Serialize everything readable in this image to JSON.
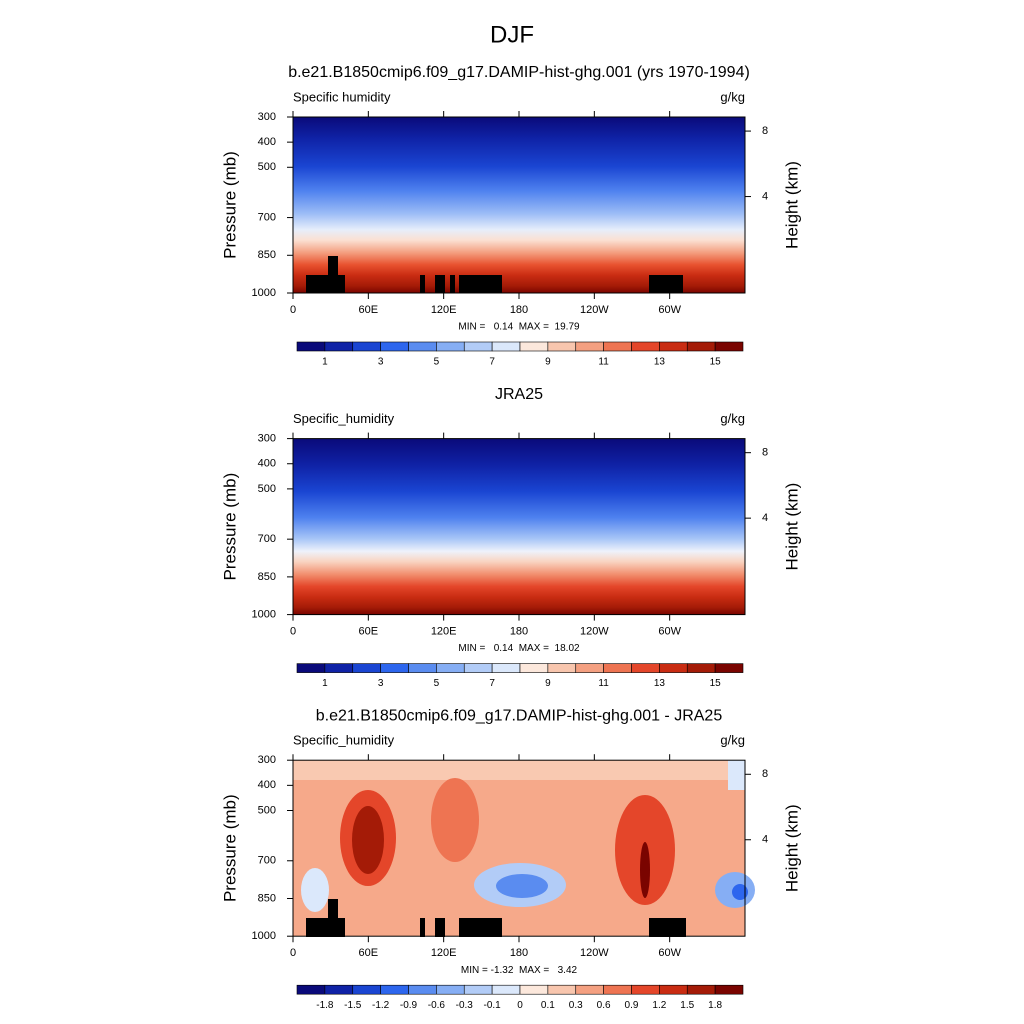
{
  "title": "DJF",
  "chart_data": [
    {
      "type": "contour",
      "title": "b.e21.B1850cmip6.f09_g17.DAMIP-hist-ghg.001 (yrs 1970-1994)",
      "left_label": "Specific humidity",
      "right_label": "g/kg",
      "ylabel": "Pressure (mb)",
      "y2label": "Height (km)",
      "xlim": [
        0,
        360
      ],
      "xticks": [
        0,
        {
          "value": 60,
          "label": "60E"
        },
        {
          "value": 120,
          "label": "120E"
        },
        180,
        {
          "value": 240,
          "label": "120W"
        },
        {
          "value": 300,
          "label": "60W"
        }
      ],
      "ylim": [
        1000,
        300
      ],
      "yticks": [
        300,
        400,
        500,
        700,
        850,
        1000
      ],
      "y2ticks": [
        8,
        4
      ],
      "min_max": "MIN =   0.14  MAX =  19.79",
      "colorbar": {
        "levels": [
          1,
          2,
          3,
          4,
          5,
          6,
          7,
          8,
          9,
          10,
          11,
          12,
          13,
          14,
          15
        ],
        "label_stride": 2,
        "colors": [
          "#0a0a7a",
          "#0f22a6",
          "#1a45d2",
          "#2d66ee",
          "#5a8cf0",
          "#86aef4",
          "#b2ccf7",
          "#dbe8fb",
          "#fce8dc",
          "#f8c6ae",
          "#f4a081",
          "#ee7452",
          "#e4462a",
          "#c92c12",
          "#a41b07",
          "#7a0400"
        ]
      }
    },
    {
      "type": "contour",
      "title": "JRA25",
      "left_label": "Specific_humidity",
      "right_label": "g/kg",
      "ylabel": "Pressure (mb)",
      "y2label": "Height (km)",
      "xlim": [
        0,
        360
      ],
      "xticks": [
        0,
        {
          "value": 60,
          "label": "60E"
        },
        {
          "value": 120,
          "label": "120E"
        },
        180,
        {
          "value": 240,
          "label": "120W"
        },
        {
          "value": 300,
          "label": "60W"
        }
      ],
      "ylim": [
        1000,
        300
      ],
      "yticks": [
        300,
        400,
        500,
        700,
        850,
        1000
      ],
      "y2ticks": [
        8,
        4
      ],
      "min_max": "MIN =   0.14  MAX =  18.02",
      "colorbar": {
        "levels": [
          1,
          2,
          3,
          4,
          5,
          6,
          7,
          8,
          9,
          10,
          11,
          12,
          13,
          14,
          15
        ],
        "label_stride": 2,
        "colors": [
          "#0a0a7a",
          "#0f22a6",
          "#1a45d2",
          "#2d66ee",
          "#5a8cf0",
          "#86aef4",
          "#b2ccf7",
          "#dbe8fb",
          "#fce8dc",
          "#f8c6ae",
          "#f4a081",
          "#ee7452",
          "#e4462a",
          "#c92c12",
          "#a41b07",
          "#7a0400"
        ]
      }
    },
    {
      "type": "contour",
      "title": "b.e21.B1850cmip6.f09_g17.DAMIP-hist-ghg.001 - JRA25",
      "left_label": "Specific_humidity",
      "right_label": "g/kg",
      "ylabel": "Pressure (mb)",
      "y2label": "Height (km)",
      "xlim": [
        0,
        360
      ],
      "xticks": [
        0,
        {
          "value": 60,
          "label": "60E"
        },
        {
          "value": 120,
          "label": "120E"
        },
        180,
        {
          "value": 240,
          "label": "120W"
        },
        {
          "value": 300,
          "label": "60W"
        }
      ],
      "ylim": [
        1000,
        300
      ],
      "yticks": [
        300,
        400,
        500,
        700,
        850,
        1000
      ],
      "y2ticks": [
        8,
        4
      ],
      "min_max": "MIN = -1.32  MAX =   3.42",
      "colorbar": {
        "levels": [
          -1.8,
          -1.5,
          -1.2,
          -0.9,
          -0.6,
          -0.3,
          -0.1,
          0,
          0.1,
          0.3,
          0.6,
          0.9,
          1.2,
          1.5,
          1.8
        ],
        "label_stride": 1,
        "colors": [
          "#0a0a7a",
          "#0f22a6",
          "#1a45d2",
          "#2d66ee",
          "#5a8cf0",
          "#86aef4",
          "#b2ccf7",
          "#dbe8fb",
          "#fce8dc",
          "#f8c6ae",
          "#f4a081",
          "#ee7452",
          "#e4462a",
          "#c92c12",
          "#a41b07",
          "#7a0400"
        ]
      }
    }
  ]
}
